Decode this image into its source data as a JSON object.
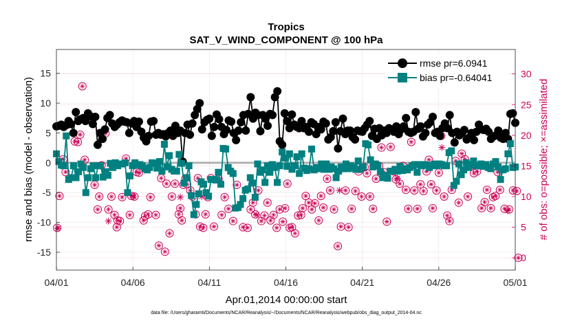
{
  "chart_data": {
    "type": "line",
    "title": "Tropics",
    "subtitle": "SAT_V_WIND_COMPONENT @ 100 hPa",
    "xlabel": "Apr.01,2014 00:00:00 start",
    "ylabel": "rmse and bias (model - observation)",
    "y2label": "# of obs: o=possible; ×=assimilated",
    "footnote": "data file: /Users/gharamti/Documents/NCAR/Reanalysis/~/Documents/NCAR/Reanalysis/webpub/obs_diag_output_2014-04.nc",
    "xlim": [
      0,
      30
    ],
    "ylim": [
      -18,
      19
    ],
    "y2lim": [
      -2.0,
      34.0
    ],
    "x_tick_values": [
      0,
      5,
      10,
      15,
      20,
      25,
      30
    ],
    "x_tick_labels": [
      "04/01",
      "04/06",
      "04/11",
      "04/16",
      "04/21",
      "04/26",
      "05/01"
    ],
    "y_tick_values": [
      -15,
      -10,
      -5,
      0,
      5,
      10,
      15
    ],
    "y_tick_labels": [
      "-15",
      "-10",
      "-5",
      "0",
      "5",
      "10",
      "15"
    ],
    "y2_tick_values": [
      0,
      5,
      10,
      15,
      20,
      25,
      30
    ],
    "y2_tick_labels": [
      "0",
      "5",
      "10",
      "15",
      "20",
      "25",
      "30"
    ],
    "legend_position": "top-right",
    "colors": {
      "rmse": "#000000",
      "bias": "#008080",
      "obs": "#cc0055",
      "zero_line": "#b0b0b0"
    },
    "series": [
      {
        "name": "rmse",
        "legend": "rmse pr=6.0941",
        "marker": "circle",
        "values": [
          6.1,
          6.2,
          6.4,
          6.0,
          6.3,
          7.0,
          6.5,
          5.0,
          8.5,
          7.0,
          7.3,
          7.5,
          7.0,
          8.3,
          7.8,
          6.5,
          7.7,
          3.0,
          5.0,
          4.0,
          5.6,
          7.5,
          8.0,
          6.6,
          6.0,
          6.4,
          6.8,
          7.1,
          6.9,
          6.8,
          5.0,
          6.6,
          7.0,
          6.0,
          6.9,
          5.2,
          4.2,
          3.6,
          4.5,
          6.9,
          7.0,
          4.7,
          5.0,
          4.7,
          4.8,
          4.4,
          5.0,
          5.4,
          4.5,
          6.2,
          5.0,
          5.4,
          0.2,
          5.0,
          6.4,
          4.7,
          6.6,
          8.0,
          9.0,
          10.0,
          5.6,
          6.8,
          7.2,
          7.4,
          4.5,
          6.0,
          8.1,
          7.3,
          6.0,
          4.8,
          5.5,
          7.1,
          6.9,
          5.0,
          3.8,
          5.4,
          6.8,
          8.0,
          5.4,
          8.2,
          11.0,
          7.4,
          8.4,
          8.0,
          5.3,
          8.0,
          7.4,
          6.2,
          8.2,
          8.0,
          11.0,
          12.0,
          3.6,
          3.0,
          8.3,
          7.0,
          5.8,
          8.1,
          6.4,
          6.0,
          5.8,
          7.0,
          5.8,
          6.0,
          5.2,
          6.8,
          6.5,
          4.8,
          6.0,
          5.6,
          6.9,
          6.6,
          3.9,
          4.3,
          5.3,
          6.8,
          2.4,
          5.3,
          7.4,
          4.8,
          5.4,
          5.4,
          4.3,
          3.9,
          5.4,
          5.3,
          5.2,
          5.8,
          6.4,
          7.0,
          4.5,
          5.7,
          4.0,
          5.8,
          4.6,
          5.4,
          5.0,
          5.8,
          5.5,
          5.2,
          6.1,
          4.8,
          5.6,
          6.1,
          7.5,
          5.2,
          5.0,
          5.2,
          8.5,
          5.7,
          6.1,
          4.4,
          5.0,
          6.4,
          6.8,
          7.7,
          5.0,
          5.2,
          4.5,
          5.8,
          6.6,
          5.8,
          8.0,
          5.0,
          3.4,
          5.2,
          4.6,
          5.0,
          5.5,
          3.9,
          4.2,
          5.0,
          3.8,
          5.2,
          6.4,
          5.6,
          5.5,
          5.7,
          5.2,
          4.0,
          4.4,
          4.6,
          5.4,
          4.2,
          4.0,
          5.0,
          4.0,
          8.2,
          8.3,
          6.7
        ]
      },
      {
        "name": "bias",
        "legend": "bias pr=-0.64041",
        "marker": "square",
        "values": [
          1.5,
          0.2,
          -0.4,
          -0.5,
          4.5,
          -2.8,
          -2.5,
          -0.5,
          -2.5,
          -1.5,
          -0.2,
          -0.8,
          -5.0,
          -2.5,
          -1.0,
          -0.5,
          -2.5,
          -0.5,
          -0.5,
          -2.4,
          -1.5,
          -2.1,
          -0.1,
          -0.8,
          0.0,
          -0.5,
          -0.2,
          -0.2,
          0.0,
          -5.0,
          -2.2,
          -0.5,
          0.0,
          -0.4,
          -0.3,
          -0.5,
          -1.0,
          -1.2,
          -0.8,
          0.0,
          -0.1,
          -0.9,
          0.2,
          -1.4,
          3.1,
          -0.7,
          1.2,
          -1.1,
          -1.4,
          -1.4,
          1.4,
          -0.1,
          -3.4,
          -2.5,
          -0.5,
          -5.5,
          -8.7,
          -7.0,
          -5.2,
          -3.2,
          -3.6,
          -5.0,
          -5.6,
          -2.8,
          -2.8,
          -2.9,
          -1.6,
          -3.6,
          2.4,
          2.3,
          -0.8,
          -1.4,
          -1.8,
          -7.6,
          -7.5,
          -7.0,
          -6.0,
          -4.6,
          -4.4,
          -2.5,
          -3.4,
          -5.8,
          -0.2,
          -1.6,
          -1.2,
          -3.3,
          -0.5,
          -1.6,
          -0.3,
          -0.8,
          -3.3,
          -0.5,
          1.8,
          0.8,
          -0.6,
          1.5,
          -1.1,
          -0.5,
          1.0,
          -1.8,
          1.5,
          -0.9,
          -1.3,
          -1.0,
          2.3,
          -1.2,
          -0.8,
          -1.0,
          -0.2,
          -1.1,
          -0.2,
          -1.1,
          -0.7,
          -1.0,
          -2.5,
          -1.4,
          -0.7,
          -1.0,
          -0.2,
          -1.0,
          -0.5,
          -0.8,
          -1.1,
          0.3,
          -1.1,
          -0.7,
          3.2,
          3.0,
          0.5,
          -0.7,
          -0.2,
          -0.5,
          -1.5,
          -2.5,
          -2.1,
          -2.6,
          -1.4,
          -1.4,
          -1.1,
          -1.4,
          -0.6,
          -1.3,
          -1.0,
          -1.2,
          -0.8,
          -0.5,
          -0.3,
          -1.6,
          -0.3,
          -0.5,
          -0.3,
          -0.4,
          -0.8,
          -0.5,
          -0.2,
          -0.5,
          -0.2,
          -0.3,
          -0.5,
          -0.5,
          1.7,
          2.0,
          -3.8,
          -3.1,
          -0.2,
          -2.0,
          -1.2,
          0.0,
          -0.8,
          -0.3,
          0.3,
          -0.5,
          -0.5,
          -0.2,
          -0.6,
          -0.3,
          -0.8,
          -1.0,
          -0.2,
          0.2,
          -0.7,
          -2.8,
          -1.2,
          -1.0,
          1.5,
          3.2,
          -0.8,
          -0.7
        ]
      }
    ],
    "obs_points": [
      [
        0.05,
        4.9
      ],
      [
        0.2,
        10.1
      ],
      [
        0.45,
        16.1
      ],
      [
        0.6,
        14.0
      ],
      [
        0.8,
        21.8
      ],
      [
        1.2,
        19.0
      ],
      [
        1.4,
        18.9
      ],
      [
        1.55,
        20.1
      ],
      [
        1.7,
        28.0
      ],
      [
        1.85,
        16.0
      ],
      [
        2.3,
        22.6
      ],
      [
        2.5,
        11.9
      ],
      [
        2.7,
        7.9
      ],
      [
        2.8,
        10.0
      ],
      [
        2.95,
        15.1
      ],
      [
        3.2,
        20.3
      ],
      [
        3.4,
        7.9
      ],
      [
        3.6,
        10.0
      ],
      [
        3.8,
        7.0
      ],
      [
        3.95,
        5.0
      ],
      [
        4.0,
        6.1
      ],
      [
        4.15,
        6.0
      ],
      [
        4.3,
        9.9
      ],
      [
        4.55,
        16.2
      ],
      [
        4.8,
        7.0
      ],
      [
        4.9,
        10.1
      ],
      [
        5.1,
        10.0
      ],
      [
        5.25,
        14.0
      ],
      [
        5.4,
        13.9
      ],
      [
        5.7,
        6.1
      ],
      [
        5.8,
        6.8
      ],
      [
        6.0,
        7.1
      ],
      [
        6.15,
        9.9
      ],
      [
        6.5,
        7.0
      ],
      [
        6.7,
        2.0
      ],
      [
        6.85,
        13.0
      ],
      [
        7.1,
        1.0
      ],
      [
        7.2,
        12.1
      ],
      [
        7.4,
        4.0
      ],
      [
        7.55,
        10.0
      ],
      [
        7.75,
        12.1
      ],
      [
        8.0,
        7.1
      ],
      [
        8.1,
        8.1
      ],
      [
        8.2,
        6.1
      ],
      [
        8.3,
        11.9
      ],
      [
        8.45,
        13.0
      ],
      [
        8.55,
        12.0
      ],
      [
        8.75,
        11.0
      ],
      [
        8.9,
        10.0
      ],
      [
        9.1,
        7.1
      ],
      [
        9.25,
        13.0
      ],
      [
        9.4,
        5.1
      ],
      [
        9.6,
        4.9
      ],
      [
        9.75,
        7.1
      ],
      [
        9.9,
        9.9
      ],
      [
        10.1,
        13.0
      ],
      [
        10.3,
        5.1
      ],
      [
        10.6,
        12.9
      ],
      [
        10.8,
        7.0
      ],
      [
        11.0,
        9.9
      ],
      [
        11.25,
        8.0
      ],
      [
        11.55,
        6.0
      ],
      [
        11.8,
        11.9
      ],
      [
        12.2,
        5.0
      ],
      [
        12.5,
        4.9
      ],
      [
        12.7,
        7.9
      ],
      [
        12.85,
        9.0
      ],
      [
        13.0,
        7.1
      ],
      [
        13.2,
        11.0
      ],
      [
        13.4,
        6.0
      ],
      [
        13.6,
        6.9
      ],
      [
        13.8,
        9.0
      ],
      [
        14.0,
        6.1
      ],
      [
        14.2,
        7.0
      ],
      [
        14.4,
        4.9
      ],
      [
        14.6,
        7.9
      ],
      [
        14.8,
        5.9
      ],
      [
        14.95,
        8.1
      ],
      [
        15.1,
        12.1
      ],
      [
        15.25,
        4.9
      ],
      [
        15.4,
        5.0
      ],
      [
        15.6,
        4.0
      ],
      [
        15.8,
        6.9
      ],
      [
        16.0,
        7.0
      ],
      [
        16.1,
        8.1
      ],
      [
        16.3,
        10.1
      ],
      [
        16.5,
        9.0
      ],
      [
        16.7,
        7.9
      ],
      [
        16.9,
        8.9
      ],
      [
        17.15,
        6.1
      ],
      [
        17.3,
        10.1
      ],
      [
        17.45,
        8.2
      ],
      [
        17.7,
        12.9
      ],
      [
        17.9,
        11.0
      ],
      [
        18.15,
        7.9
      ],
      [
        18.4,
        1.9
      ],
      [
        18.6,
        5.1
      ],
      [
        18.9,
        11.0
      ],
      [
        19.1,
        5.0
      ],
      [
        19.3,
        8.0
      ],
      [
        19.55,
        10.9
      ],
      [
        19.75,
        14.1
      ],
      [
        19.95,
        10.0
      ],
      [
        20.15,
        14.8
      ],
      [
        20.3,
        13.8
      ],
      [
        20.5,
        10.0
      ],
      [
        20.7,
        8.0
      ],
      [
        20.9,
        12.9
      ],
      [
        21.1,
        15.0
      ],
      [
        21.25,
        18.0
      ],
      [
        21.4,
        14.0
      ],
      [
        21.6,
        5.9
      ],
      [
        21.85,
        18.1
      ],
      [
        22.05,
        14.1
      ],
      [
        22.2,
        12.8
      ],
      [
        22.45,
        12.1
      ],
      [
        22.65,
        15.0
      ],
      [
        22.85,
        11.1
      ],
      [
        23.0,
        8.0
      ],
      [
        23.2,
        18.9
      ],
      [
        23.4,
        11.0
      ],
      [
        23.6,
        8.0
      ],
      [
        23.8,
        12.0
      ],
      [
        24.0,
        10.9
      ],
      [
        24.2,
        14.1
      ],
      [
        24.35,
        16.0
      ],
      [
        24.5,
        12.0
      ],
      [
        24.6,
        8.1
      ],
      [
        24.85,
        11.0
      ],
      [
        25.0,
        13.9
      ],
      [
        25.15,
        19.9
      ],
      [
        25.35,
        10.0
      ],
      [
        25.55,
        6.9
      ],
      [
        25.7,
        6.0
      ],
      [
        25.85,
        11.1
      ],
      [
        26.1,
        15.8
      ],
      [
        26.3,
        9.0
      ],
      [
        26.5,
        17.0
      ],
      [
        26.7,
        16.1
      ],
      [
        26.9,
        10.0
      ],
      [
        27.0,
        15.0
      ],
      [
        27.3,
        13.8
      ],
      [
        27.5,
        14.1
      ],
      [
        27.8,
        8.1
      ],
      [
        28.0,
        9.1
      ],
      [
        28.15,
        11.1
      ],
      [
        28.4,
        8.1
      ],
      [
        28.55,
        9.9
      ],
      [
        28.7,
        10.1
      ],
      [
        28.85,
        14.0
      ],
      [
        29.0,
        11.1
      ],
      [
        29.3,
        8.0
      ],
      [
        29.6,
        7.9
      ],
      [
        29.85,
        11.0
      ],
      [
        30.1,
        10.9
      ],
      [
        30.2,
        0.0
      ]
    ],
    "assimilated_points": [
      [
        0.1,
        4.8
      ],
      [
        3.4,
        6.0
      ],
      [
        5.05,
        10.0
      ],
      [
        8.1,
        9.9
      ],
      [
        9.5,
        10.0
      ],
      [
        13.1,
        7.0
      ],
      [
        18.5,
        11.0
      ],
      [
        22.3,
        13.0
      ],
      [
        25.2,
        18.0
      ],
      [
        29.5,
        7.7
      ]
    ]
  }
}
